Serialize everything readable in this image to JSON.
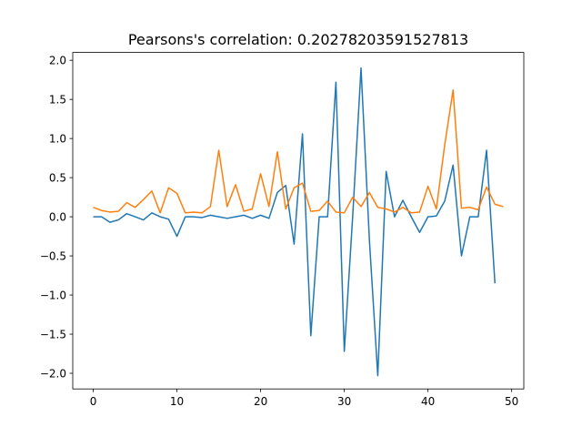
{
  "chart_data": {
    "type": "line",
    "title": "Pearsons's correlation: 0.20278203591527813",
    "xlabel": "",
    "ylabel": "",
    "xlim": [
      -2.45,
      51.45
    ],
    "ylim": [
      -2.2,
      2.1
    ],
    "grid": false,
    "x_ticks": [
      0,
      10,
      20,
      30,
      40,
      50
    ],
    "x_tick_labels": [
      "0",
      "10",
      "20",
      "30",
      "40",
      "50"
    ],
    "y_ticks": [
      2.0,
      1.5,
      1.0,
      0.5,
      0.0,
      -0.5,
      -1.0,
      -1.5,
      -2.0
    ],
    "y_tick_labels": [
      "2.0",
      "1.5",
      "1.0",
      "0.5",
      "0.0",
      "−0.5",
      "−1.0",
      "−1.5",
      "−2.0"
    ],
    "series": [
      {
        "color": "#1f77b4",
        "x": [
          0,
          1,
          2,
          3,
          4,
          5,
          6,
          7,
          8,
          9,
          10,
          11,
          12,
          13,
          14,
          15,
          16,
          17,
          18,
          19,
          20,
          21,
          22,
          23,
          24,
          25,
          26,
          27,
          28,
          29,
          30,
          31,
          32,
          33,
          34,
          35,
          36,
          37,
          38,
          39,
          40,
          41,
          42,
          43,
          44,
          45,
          46,
          47,
          48
        ],
        "values": [
          0.0,
          0.0,
          -0.07,
          -0.04,
          0.04,
          0.0,
          -0.04,
          0.05,
          0.0,
          -0.03,
          -0.25,
          0.0,
          0.0,
          -0.01,
          0.02,
          0.0,
          -0.02,
          0.0,
          0.02,
          -0.02,
          0.02,
          -0.02,
          0.31,
          0.4,
          -0.35,
          1.06,
          -1.52,
          0.0,
          0.0,
          1.72,
          -1.72,
          0.0,
          1.9,
          -0.3,
          -2.03,
          0.58,
          0.0,
          0.21,
          0.0,
          -0.2,
          0.0,
          0.01,
          0.2,
          0.66,
          -0.5,
          0.0,
          0.0,
          0.85,
          -0.85
        ]
      },
      {
        "color": "#ff7f0e",
        "x": [
          0,
          1,
          2,
          3,
          4,
          5,
          6,
          7,
          8,
          9,
          10,
          11,
          12,
          13,
          14,
          15,
          16,
          17,
          18,
          19,
          20,
          21,
          22,
          23,
          24,
          25,
          26,
          27,
          28,
          29,
          30,
          31,
          32,
          33,
          34,
          35,
          36,
          37,
          38,
          39,
          40,
          41,
          42,
          43,
          44,
          45,
          46,
          47,
          48,
          49
        ],
        "values": [
          0.12,
          0.08,
          0.06,
          0.07,
          0.18,
          0.12,
          0.22,
          0.33,
          0.05,
          0.37,
          0.3,
          0.05,
          0.06,
          0.05,
          0.13,
          0.85,
          0.13,
          0.41,
          0.07,
          0.1,
          0.55,
          0.13,
          0.83,
          0.1,
          0.37,
          0.43,
          0.07,
          0.08,
          0.2,
          0.06,
          0.05,
          0.25,
          0.13,
          0.31,
          0.12,
          0.1,
          0.06,
          0.12,
          0.05,
          0.06,
          0.39,
          0.1,
          0.92,
          1.62,
          0.11,
          0.12,
          0.09,
          0.38,
          0.16,
          0.13
        ]
      }
    ]
  }
}
